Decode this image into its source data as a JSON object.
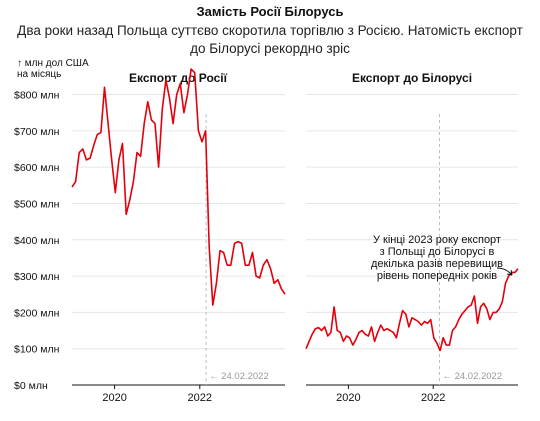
{
  "header": {
    "title": "Замість Росії Білорусь",
    "subtitle": "Два роки назад Польща суттєво скоротила торгівлю з Росією. Натомість експорт до Білорусі рекордно зріс"
  },
  "unit_label": "↑ млн дол США\nна місяць",
  "event_label": "← 24.02.2022",
  "annotation": [
    "У кінці 2023 року експорт",
    "з Польщі до Білорусі в",
    "декілька разів перевищив",
    "рівень попередніх років"
  ],
  "colors": {
    "line": "#e3000b",
    "grid": "#e6e6e6",
    "event": "#bbbbbb",
    "axis": "#111111"
  },
  "chart_data": [
    {
      "type": "line",
      "title": "Експорт до Росії",
      "x_ticks": [
        "2020",
        "2022"
      ],
      "y_ticks": [
        "$800 млн",
        "$700 млн",
        "$600 млн",
        "$500 млн",
        "$400 млн",
        "$300 млн",
        "$200 млн",
        "$100 млн",
        "$0 млн"
      ],
      "ylim": [
        0,
        840
      ],
      "x_start": "2019-01",
      "event_date": "2022-02-24",
      "series": [
        {
          "values": [
            545,
            560,
            640,
            650,
            620,
            625,
            660,
            690,
            695,
            820,
            720,
            620,
            530,
            620,
            665,
            470,
            510,
            560,
            640,
            630,
            720,
            780,
            730,
            720,
            600,
            760,
            840,
            790,
            720,
            800,
            830,
            750,
            800,
            870,
            860,
            700,
            670,
            700,
            380,
            220,
            280,
            370,
            365,
            330,
            330,
            390,
            395,
            390,
            330,
            330,
            365,
            300,
            295,
            330,
            345,
            320,
            280,
            290,
            265,
            250
          ]
        }
      ]
    },
    {
      "type": "line",
      "title": "Експорт до Білорусі",
      "x_ticks": [
        "2020",
        "2022"
      ],
      "y_ticks": [],
      "ylim": [
        0,
        840
      ],
      "x_start": "2019-01",
      "event_date": "2022-02-24",
      "series": [
        {
          "values": [
            100,
            120,
            140,
            155,
            158,
            150,
            160,
            135,
            145,
            215,
            150,
            145,
            120,
            135,
            130,
            110,
            125,
            145,
            150,
            140,
            135,
            160,
            120,
            145,
            165,
            150,
            155,
            150,
            145,
            130,
            170,
            205,
            195,
            160,
            185,
            180,
            175,
            165,
            175,
            170,
            180,
            130,
            115,
            95,
            130,
            110,
            110,
            150,
            160,
            180,
            195,
            205,
            215,
            220,
            245,
            170,
            215,
            225,
            210,
            180,
            200,
            200,
            210,
            230,
            280,
            300,
            310,
            310,
            320
          ]
        }
      ]
    }
  ]
}
